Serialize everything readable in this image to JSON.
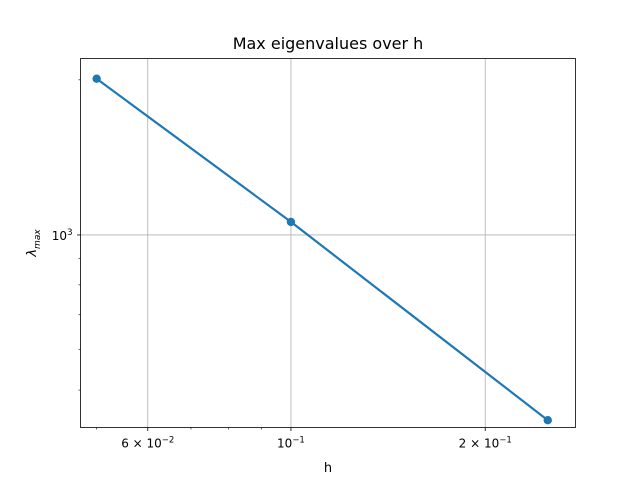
{
  "chart_data": {
    "type": "line",
    "title": "Max eigenvalues over h",
    "xlabel": "h",
    "ylabel": {
      "base": "λ",
      "subscript": "max"
    },
    "x_scale": "log",
    "y_scale": "log",
    "xlim": [
      0.0472,
      0.276
    ],
    "ylim": [
      423,
      2200
    ],
    "grid": true,
    "marker": "circle",
    "color": "#1f77b4",
    "x_ticks": [
      {
        "value": 0.06,
        "mantissa": "6 × 10",
        "exponent": "−2"
      },
      {
        "value": 0.1,
        "mantissa": "10",
        "exponent": "−1"
      },
      {
        "value": 0.2,
        "mantissa": "2 × 10",
        "exponent": "−1"
      }
    ],
    "x_minor_ticks": [
      0.05,
      0.07,
      0.08,
      0.09,
      0.3
    ],
    "y_ticks": [
      {
        "value": 1000,
        "mantissa": "10",
        "exponent": "3"
      }
    ],
    "series": [
      {
        "x": [
          0.05,
          0.1,
          0.25
        ],
        "y": [
          2010,
          1060,
          437
        ]
      }
    ]
  }
}
